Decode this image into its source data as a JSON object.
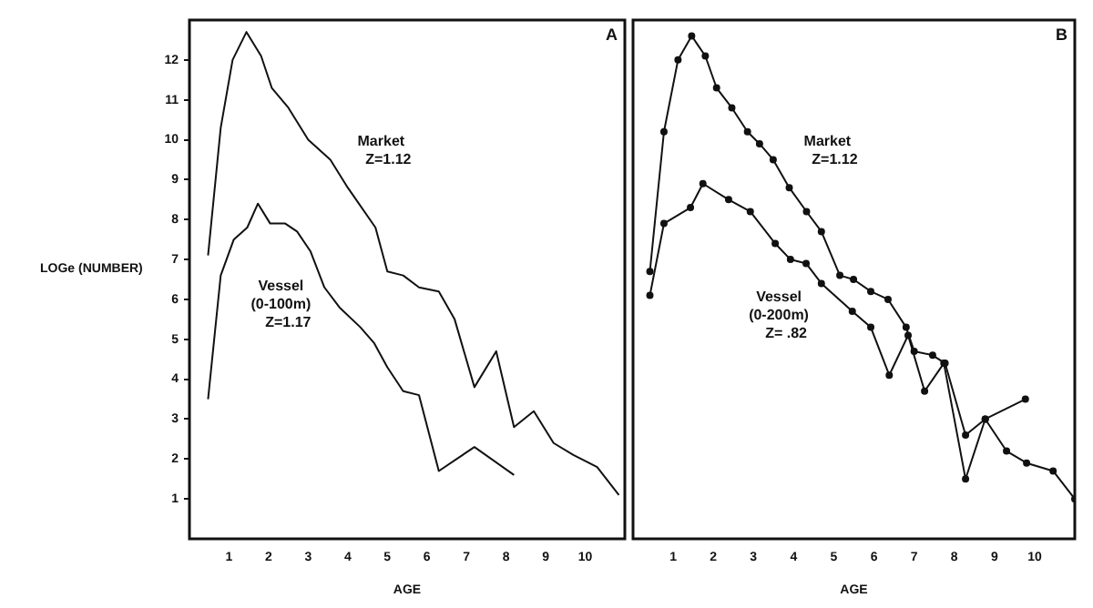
{
  "chart_data": [
    {
      "type": "line",
      "xlabel": "AGE",
      "ylabel": "LOGe (NUMBER)",
      "xlim": [
        0,
        11
      ],
      "ylim": [
        0,
        13
      ],
      "xticks": [
        1,
        2,
        3,
        4,
        5,
        6,
        7,
        8,
        9,
        10
      ],
      "yticks": [
        1,
        2,
        3,
        4,
        5,
        6,
        7,
        8,
        9,
        10,
        11,
        12
      ],
      "grid": false,
      "legend": false,
      "marker": "none",
      "line_style": "solid",
      "annotations": [
        "A",
        "Z=1.12",
        "Z=1.17"
      ],
      "series": [
        {
          "name": "Market",
          "color": "#111111",
          "x": [
            0.47,
            0.79,
            1.09,
            1.44,
            1.81,
            2.08,
            2.5,
            3.0,
            3.56,
            4.0,
            4.7,
            5.0,
            5.4,
            5.8,
            6.3,
            6.7,
            7.2,
            7.75,
            8.2,
            8.7,
            9.2,
            9.7,
            10.3,
            10.85
          ],
          "values": [
            7.1,
            10.3,
            12.0,
            12.7,
            12.1,
            11.3,
            10.8,
            10.0,
            9.5,
            8.8,
            7.8,
            6.7,
            6.6,
            6.3,
            6.2,
            5.5,
            3.8,
            4.7,
            2.8,
            3.2,
            2.4,
            2.1,
            1.8,
            1.1
          ]
        },
        {
          "name": "Vessel\n(0-100m)",
          "color": "#111111",
          "x": [
            0.47,
            0.79,
            1.12,
            1.46,
            1.73,
            2.04,
            2.42,
            2.72,
            3.06,
            3.41,
            3.79,
            4.32,
            4.67,
            5.0,
            5.4,
            5.8,
            6.3,
            7.2,
            8.2
          ],
          "values": [
            3.5,
            6.6,
            7.5,
            7.8,
            8.4,
            7.9,
            7.9,
            7.7,
            7.2,
            6.3,
            5.8,
            5.3,
            4.9,
            4.3,
            3.7,
            3.6,
            1.7,
            2.3,
            1.6
          ]
        }
      ]
    },
    {
      "type": "line",
      "xlabel": "AGE",
      "xlim": [
        0,
        11
      ],
      "ylim": [
        0,
        13
      ],
      "xticks": [
        1,
        2,
        3,
        4,
        5,
        6,
        7,
        8,
        9,
        10
      ],
      "tick_labels": "x",
      "grid": false,
      "legend": false,
      "marker": "circle",
      "line_style": "solid",
      "annotations": [
        "B",
        "Z=1.12",
        "Z= .82"
      ],
      "series": [
        {
          "name": "Market",
          "color": "#111111",
          "x": [
            0.42,
            0.77,
            1.12,
            1.46,
            1.8,
            2.08,
            2.46,
            2.85,
            3.15,
            3.49,
            3.89,
            4.32,
            4.69,
            5.15,
            5.49,
            5.92,
            6.35,
            6.8,
            7.0,
            7.46,
            7.77,
            8.28,
            8.77,
            9.3,
            9.8,
            10.46,
            11.0
          ],
          "values": [
            6.7,
            10.2,
            12.0,
            12.6,
            12.1,
            11.3,
            10.8,
            10.2,
            9.9,
            9.5,
            8.8,
            8.2,
            7.7,
            6.6,
            6.5,
            6.2,
            6.0,
            5.3,
            4.7,
            4.6,
            4.4,
            2.6,
            3.0,
            2.2,
            1.9,
            1.7,
            1.0
          ]
        },
        {
          "name": "Vessel\n(0-200m)",
          "color": "#111111",
          "x": [
            0.42,
            0.77,
            1.43,
            1.74,
            2.38,
            2.92,
            3.54,
            3.92,
            4.31,
            4.69,
            5.46,
            5.92,
            6.38,
            6.85,
            7.26,
            7.74,
            8.28,
            8.77,
            9.77
          ],
          "values": [
            6.1,
            7.9,
            8.3,
            8.9,
            8.5,
            8.2,
            7.4,
            7.0,
            6.9,
            6.4,
            5.7,
            5.3,
            4.1,
            5.1,
            3.7,
            4.4,
            1.5,
            3.0,
            3.5
          ]
        }
      ]
    }
  ]
}
